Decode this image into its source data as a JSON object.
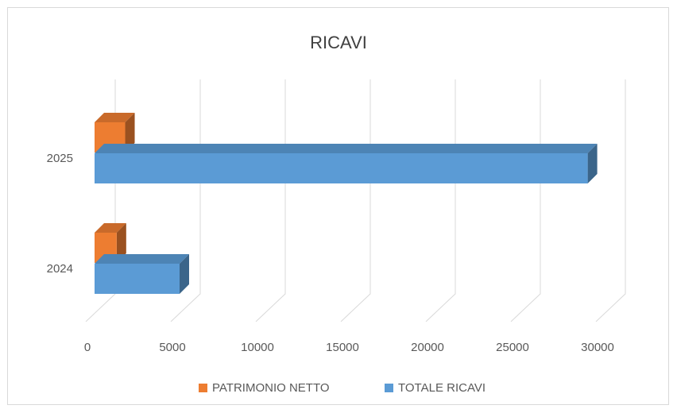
{
  "chart_data": {
    "type": "bar3d_horizontal",
    "title": "RICAVI",
    "categories": [
      "2024",
      "2025"
    ],
    "series": [
      {
        "name": "PATRIMONIO NETTO",
        "color": "#ed7d31",
        "values": [
          1300,
          1800
        ]
      },
      {
        "name": "TOTALE RICAVI",
        "color": "#5b9bd5",
        "values": [
          5000,
          29000
        ]
      }
    ],
    "xlim": [
      0,
      30000
    ],
    "xticks": [
      0,
      5000,
      10000,
      15000,
      20000,
      25000,
      30000
    ],
    "grid": true,
    "legend": "bottom"
  }
}
